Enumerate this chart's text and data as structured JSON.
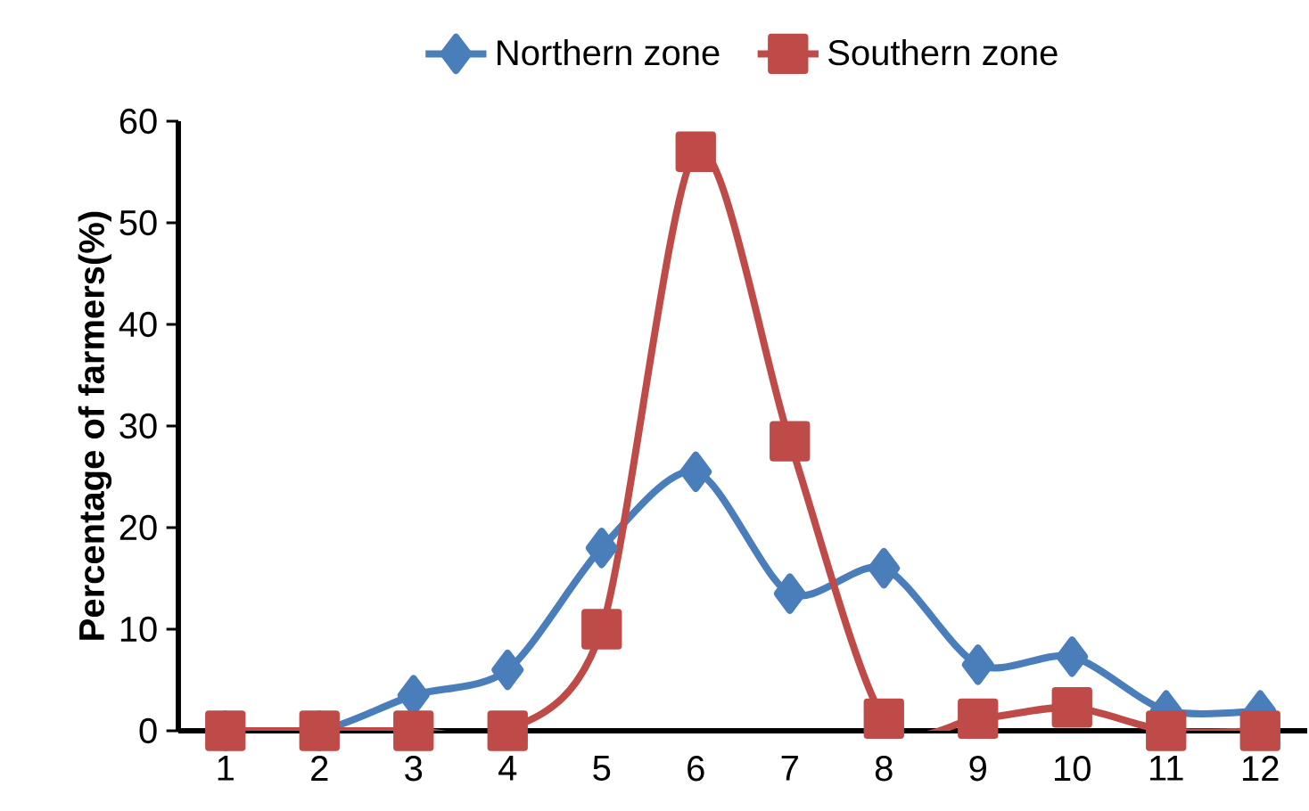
{
  "chart_data": {
    "type": "line",
    "ylabel": "Percentage of farmers(%)",
    "categories": [
      "1",
      "2",
      "3",
      "4",
      "5",
      "6",
      "7",
      "8",
      "9",
      "10",
      "11",
      "12"
    ],
    "series": [
      {
        "name": "Northern zone",
        "color": "#4a7ebb",
        "marker": "diamond",
        "values": [
          0,
          0,
          3.5,
          6,
          18,
          25.5,
          13.5,
          16,
          6.5,
          7.3,
          2,
          2
        ]
      },
      {
        "name": "Southern zone",
        "color": "#be4b48",
        "marker": "square",
        "values": [
          0,
          0,
          0,
          0,
          10,
          57,
          28.5,
          1.2,
          1.2,
          2.3,
          0,
          0
        ]
      }
    ],
    "ylim": [
      0,
      60
    ],
    "yticks": [
      0,
      10,
      20,
      30,
      40,
      50,
      60
    ],
    "grid": false,
    "legend": "top"
  }
}
